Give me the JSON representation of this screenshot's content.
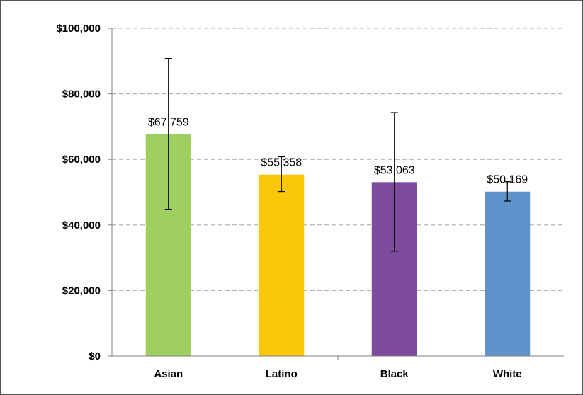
{
  "chart_data": {
    "type": "bar",
    "categories": [
      "Asian",
      "Latino",
      "Black",
      "White"
    ],
    "values": [
      67759,
      55358,
      53063,
      50169
    ],
    "data_labels": [
      "$67,759",
      "$55,358",
      "$53,063",
      "$50,169"
    ],
    "error_low": [
      44800,
      50200,
      32000,
      47300
    ],
    "error_high": [
      90800,
      60800,
      74300,
      53200
    ],
    "colors": [
      "#9fcf5f",
      "#fbc809",
      "#7d4a9c",
      "#5f93cc"
    ],
    "ylim": [
      0,
      100000
    ],
    "yticks": [
      0,
      20000,
      40000,
      60000,
      80000,
      100000
    ],
    "ytick_labels": [
      "$0",
      "$20,000",
      "$40,000",
      "$60,000",
      "$80,000",
      "$100,000"
    ],
    "grid": true,
    "title": "",
    "xlabel": "",
    "ylabel": ""
  }
}
